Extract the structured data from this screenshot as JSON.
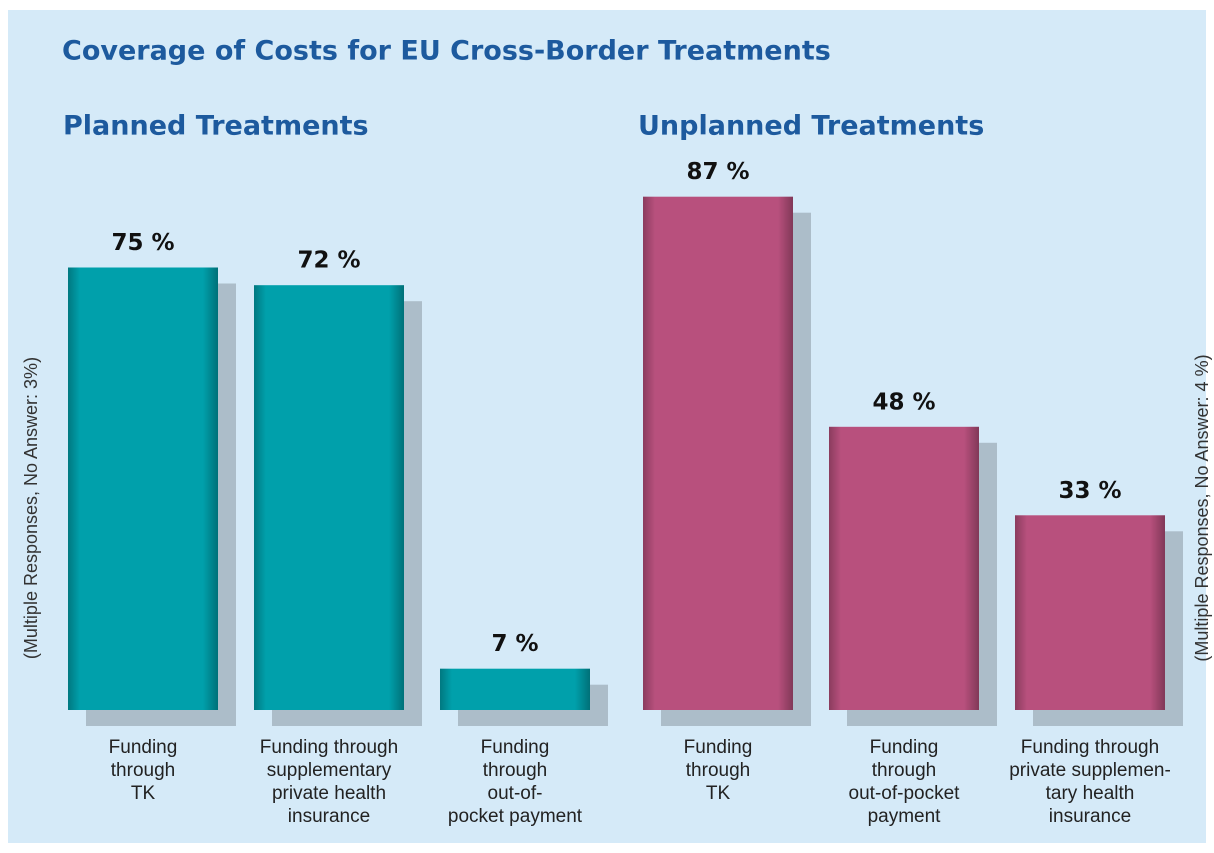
{
  "title": "Coverage of Costs for EU Cross-Border Treatments",
  "chart_data": [
    {
      "type": "bar",
      "title": "Planned Treatments",
      "note": "(Multiple Responses, No Answer: 3%)",
      "categories": [
        "Funding\nthrough\nTK",
        "Funding through\nsupplementary\nprivate health\ninsurance",
        "Funding\nthrough\nout-of-\npocket payment"
      ],
      "values": [
        75,
        72,
        7
      ],
      "value_labels": [
        "75 %",
        "72 %",
        "7 %"
      ],
      "color": "#00a0ab"
    },
    {
      "type": "bar",
      "title": "Unplanned Treatments",
      "note": "(Multiple Responses, No Answer: 4 %)",
      "categories": [
        "Funding\nthrough\nTK",
        "Funding\nthrough\nout-of-pocket\npayment",
        "Funding through\nprivate supplemen-\ntary health\ninsurance"
      ],
      "values": [
        87,
        48,
        33
      ],
      "value_labels": [
        "87 %",
        "48 %",
        "33 %"
      ],
      "color": "#b8507d"
    }
  ]
}
